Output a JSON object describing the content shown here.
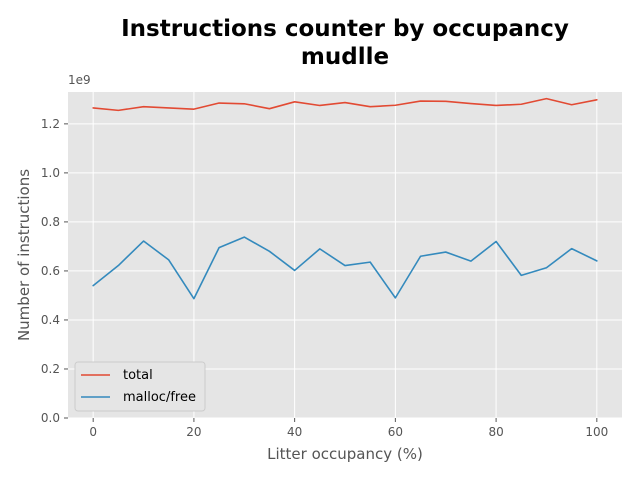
{
  "chart_data": {
    "type": "line",
    "title": [
      "Instructions counter by occupancy",
      "mudlle"
    ],
    "xlabel": "Litter occupancy (%)",
    "ylabel": "Number of instructions",
    "offset_label": "1e9",
    "xlim": [
      -5,
      105
    ],
    "ylim": [
      0,
      1.33
    ],
    "xticks": [
      0,
      20,
      40,
      60,
      80,
      100
    ],
    "yticks": [
      0.0,
      0.2,
      0.4,
      0.6,
      0.8,
      1.0,
      1.2
    ],
    "grid": true,
    "legend_position": "lower-left",
    "x": [
      0,
      5,
      10,
      15,
      20,
      25,
      30,
      35,
      40,
      45,
      50,
      55,
      60,
      65,
      70,
      75,
      80,
      85,
      90,
      95,
      100
    ],
    "series": [
      {
        "name": "total",
        "color": "#e24a33",
        "values": [
          1.265,
          1.255,
          1.27,
          1.265,
          1.26,
          1.285,
          1.282,
          1.262,
          1.29,
          1.275,
          1.287,
          1.27,
          1.276,
          1.293,
          1.292,
          1.283,
          1.275,
          1.28,
          1.303,
          1.278,
          1.298
        ]
      },
      {
        "name": "malloc/free",
        "color": "#348abd",
        "values": [
          0.54,
          0.622,
          0.722,
          0.645,
          0.487,
          0.695,
          0.738,
          0.68,
          0.602,
          0.69,
          0.622,
          0.636,
          0.49,
          0.66,
          0.677,
          0.64,
          0.72,
          0.582,
          0.613,
          0.691,
          0.641
        ]
      }
    ]
  }
}
